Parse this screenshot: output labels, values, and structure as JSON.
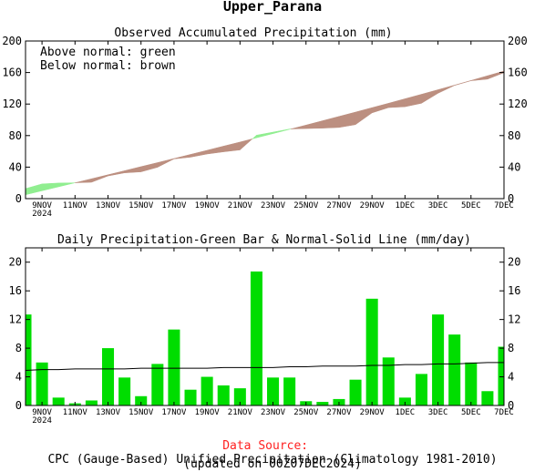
{
  "region_title": "Upper_Parana",
  "chart_data": [
    {
      "type": "area",
      "title": "Observed Accumulated Precipitation (mm)",
      "annotations": [
        "Above normal: green",
        "Below normal: brown"
      ],
      "colors": {
        "above_normal": "#90ee90",
        "below_normal": "#bc8f80"
      },
      "x": [
        "8NOV",
        "9NOV",
        "10NOV",
        "11NOV",
        "12NOV",
        "13NOV",
        "14NOV",
        "15NOV",
        "16NOV",
        "17NOV",
        "18NOV",
        "19NOV",
        "20NOV",
        "21NOV",
        "22NOV",
        "23NOV",
        "24NOV",
        "25NOV",
        "26NOV",
        "27NOV",
        "28NOV",
        "29NOV",
        "30NOV",
        "1DEC",
        "2DEC",
        "3DEC",
        "4DEC",
        "5DEC",
        "6DEC",
        "7DEC"
      ],
      "x_tick_labels": [
        "9NOV",
        "11NOV",
        "13NOV",
        "15NOV",
        "17NOV",
        "19NOV",
        "21NOV",
        "23NOV",
        "25NOV",
        "27NOV",
        "29NOV",
        "1DEC",
        "3DEC",
        "5DEC",
        "7DEC"
      ],
      "x_tick_sublabel": "2024",
      "series": [
        {
          "values": [
            12.7,
            18.7,
            19.8,
            20.1,
            20.8,
            28.8,
            32.7,
            34.0,
            39.8,
            50.4,
            52.6,
            56.6,
            59.4,
            61.8,
            80.5,
            84.4,
            88.3,
            88.9,
            89.4,
            90.3,
            93.9,
            108.8,
            115.5,
            116.6,
            121.0,
            133.7,
            143.6,
            149.6,
            151.6,
            159.8
          ]
        },
        {
          "values": [
            4.9,
            10.0,
            15.0,
            20.1,
            25.2,
            30.3,
            35.4,
            40.6,
            45.7,
            50.9,
            56.1,
            61.3,
            66.6,
            71.8,
            77.2,
            82.5,
            87.9,
            93.3,
            98.8,
            104.3,
            109.8,
            115.4,
            121.0,
            126.7,
            132.4,
            138.2,
            144.0,
            149.9,
            155.9,
            161.9
          ]
        }
      ],
      "ylim": [
        0,
        200
      ],
      "yticks": [
        0,
        40,
        80,
        120,
        160,
        200
      ]
    },
    {
      "type": "bar",
      "title": "Daily Precipitation-Green Bar & Normal-Solid Line (mm/day)",
      "x": [
        "8NOV",
        "9NOV",
        "10NOV",
        "11NOV",
        "12NOV",
        "13NOV",
        "14NOV",
        "15NOV",
        "16NOV",
        "17NOV",
        "18NOV",
        "19NOV",
        "20NOV",
        "21NOV",
        "22NOV",
        "23NOV",
        "24NOV",
        "25NOV",
        "26NOV",
        "27NOV",
        "28NOV",
        "29NOV",
        "30NOV",
        "1DEC",
        "2DEC",
        "3DEC",
        "4DEC",
        "5DEC",
        "6DEC",
        "7DEC"
      ],
      "x_tick_labels": [
        "9NOV",
        "11NOV",
        "13NOV",
        "15NOV",
        "17NOV",
        "19NOV",
        "21NOV",
        "23NOV",
        "25NOV",
        "27NOV",
        "29NOV",
        "1DEC",
        "3DEC",
        "5DEC",
        "7DEC"
      ],
      "x_tick_sublabel": "2024",
      "colors": {
        "bar": "#00dd00",
        "line": "#000000"
      },
      "series": [
        {
          "values": [
            12.7,
            6.0,
            1.1,
            0.3,
            0.7,
            8.0,
            3.9,
            1.3,
            5.8,
            10.6,
            2.2,
            4.0,
            2.8,
            2.4,
            18.7,
            3.9,
            3.9,
            0.6,
            0.5,
            0.9,
            3.6,
            14.9,
            6.7,
            1.1,
            4.4,
            12.7,
            9.9,
            6.0,
            2.0,
            8.2
          ]
        },
        {
          "values": [
            4.9,
            5.0,
            5.0,
            5.1,
            5.1,
            5.1,
            5.1,
            5.2,
            5.2,
            5.2,
            5.2,
            5.2,
            5.3,
            5.3,
            5.3,
            5.3,
            5.4,
            5.4,
            5.5,
            5.5,
            5.5,
            5.6,
            5.6,
            5.7,
            5.7,
            5.8,
            5.8,
            5.9,
            6.0,
            6.0
          ]
        }
      ],
      "ylim": [
        0,
        22
      ],
      "yticks": [
        0,
        4,
        8,
        12,
        16,
        20
      ]
    }
  ],
  "footer": {
    "source_label": "Data Source:",
    "source_text": "CPC (Gauge-Based) Unified Precipitation (Climatology 1981-2010)",
    "updated": "(updated on 00Z07DEC2024)",
    "source_color": "#ff2020"
  }
}
